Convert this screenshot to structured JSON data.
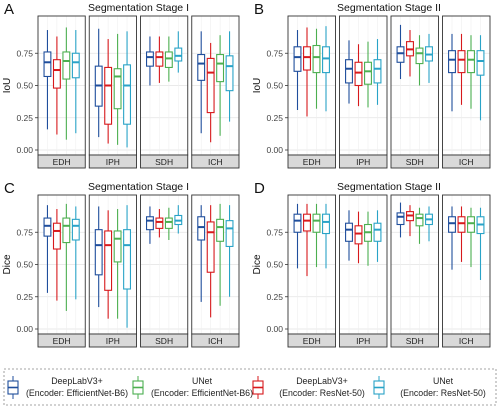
{
  "figure": {
    "colors": {
      "DeepLabV3+ (EfficientNet-B6)": "#1f4e9c",
      "UNet (EfficientNet-B6)": "#4caf50",
      "DeepLabV3+ (ResNet-50)": "#d7191c",
      "UNet (ResNet-50)": "#29a3c7"
    },
    "legend": [
      {
        "line1": "DeepLabV3+",
        "line2": "(Encoder: EfficientNet-B6)",
        "color": "#1f4e9c"
      },
      {
        "line1": "UNet",
        "line2": "(Encoder: EfficientNet-B6)",
        "color": "#4caf50"
      },
      {
        "line1": "DeepLabV3+",
        "line2": "(Encoder: ResNet-50)",
        "color": "#d7191c"
      },
      {
        "line1": "UNet",
        "line2": "(Encoder: ResNet-50)",
        "color": "#29a3c7"
      }
    ]
  },
  "chart_data": [
    {
      "panel": "A",
      "type": "boxplot",
      "title": "Segmentation Stage I",
      "ylabel": "IoU",
      "ylim": [
        0,
        1
      ],
      "yticks": [
        0.0,
        0.25,
        0.5,
        0.75
      ],
      "categories": [
        "EDH",
        "IPH",
        "SDH",
        "ICH"
      ],
      "series": [
        {
          "name": "DeepLabV3+ (EfficientNet-B6)",
          "stats": [
            [
              0.16,
              0.57,
              0.68,
              0.76,
              0.93
            ],
            [
              0.1,
              0.34,
              0.5,
              0.65,
              0.94
            ],
            [
              0.5,
              0.65,
              0.72,
              0.76,
              0.88
            ],
            [
              0.13,
              0.54,
              0.67,
              0.74,
              0.92
            ]
          ]
        },
        {
          "name": "DeepLabV3+ (ResNet-50)",
          "stats": [
            [
              0.12,
              0.48,
              0.62,
              0.7,
              0.88
            ],
            [
              0.05,
              0.2,
              0.5,
              0.64,
              0.86
            ],
            [
              0.52,
              0.65,
              0.72,
              0.76,
              0.88
            ],
            [
              0.06,
              0.29,
              0.6,
              0.71,
              0.83
            ]
          ]
        },
        {
          "name": "UNet (EfficientNet-B6)",
          "stats": [
            [
              0.08,
              0.55,
              0.69,
              0.76,
              0.95
            ],
            [
              0.04,
              0.32,
              0.57,
              0.63,
              0.9
            ],
            [
              0.53,
              0.64,
              0.71,
              0.76,
              0.88
            ],
            [
              0.11,
              0.53,
              0.67,
              0.74,
              0.89
            ]
          ]
        },
        {
          "name": "UNet (ResNet-50)",
          "stats": [
            [
              0.13,
              0.56,
              0.68,
              0.75,
              0.93
            ],
            [
              0.02,
              0.2,
              0.5,
              0.66,
              0.92
            ],
            [
              0.6,
              0.69,
              0.73,
              0.79,
              0.92
            ],
            [
              0.22,
              0.46,
              0.65,
              0.73,
              0.92
            ]
          ]
        }
      ]
    },
    {
      "panel": "B",
      "type": "boxplot",
      "title": "Segmentation Stage II",
      "ylabel": "IoU",
      "ylim": [
        0,
        1
      ],
      "yticks": [
        0.0,
        0.25,
        0.5,
        0.75
      ],
      "categories": [
        "EDH",
        "IPH",
        "SDH",
        "ICH"
      ],
      "series": [
        {
          "name": "DeepLabV3+ (EfficientNet-B6)",
          "stats": [
            [
              0.31,
              0.61,
              0.72,
              0.8,
              0.93
            ],
            [
              0.36,
              0.52,
              0.63,
              0.7,
              0.85
            ],
            [
              0.55,
              0.68,
              0.75,
              0.8,
              0.97
            ],
            [
              0.3,
              0.6,
              0.7,
              0.77,
              0.9
            ]
          ]
        },
        {
          "name": "DeepLabV3+ (ResNet-50)",
          "stats": [
            [
              0.26,
              0.62,
              0.72,
              0.8,
              0.95
            ],
            [
              0.34,
              0.5,
              0.6,
              0.68,
              0.82
            ],
            [
              0.57,
              0.73,
              0.78,
              0.84,
              0.93
            ],
            [
              0.35,
              0.6,
              0.7,
              0.77,
              0.9
            ]
          ]
        },
        {
          "name": "UNet (EfficientNet-B6)",
          "stats": [
            [
              0.32,
              0.6,
              0.72,
              0.81,
              0.94
            ],
            [
              0.33,
              0.51,
              0.61,
              0.68,
              0.84
            ],
            [
              0.5,
              0.67,
              0.75,
              0.79,
              0.89
            ],
            [
              0.32,
              0.6,
              0.7,
              0.77,
              0.89
            ]
          ]
        },
        {
          "name": "UNet (ResNet-50)",
          "stats": [
            [
              0.3,
              0.6,
              0.71,
              0.8,
              0.96
            ],
            [
              0.35,
              0.52,
              0.63,
              0.7,
              0.86
            ],
            [
              0.52,
              0.69,
              0.74,
              0.8,
              0.9
            ],
            [
              0.23,
              0.58,
              0.69,
              0.77,
              0.89
            ]
          ]
        }
      ]
    },
    {
      "panel": "C",
      "type": "boxplot",
      "title": "Segmentation Stage I",
      "ylabel": "Dice",
      "ylim": [
        0,
        1
      ],
      "yticks": [
        0.0,
        0.25,
        0.5,
        0.75
      ],
      "categories": [
        "EDH",
        "IPH",
        "SDH",
        "ICH"
      ],
      "series": [
        {
          "name": "DeepLabV3+ (EfficientNet-B6)",
          "stats": [
            [
              0.28,
              0.72,
              0.8,
              0.86,
              0.96
            ],
            [
              0.17,
              0.42,
              0.65,
              0.77,
              0.95
            ],
            [
              0.66,
              0.77,
              0.84,
              0.87,
              0.95
            ],
            [
              0.21,
              0.69,
              0.79,
              0.87,
              0.96
            ]
          ]
        },
        {
          "name": "DeepLabV3+ (ResNet-50)",
          "stats": [
            [
              0.22,
              0.62,
              0.76,
              0.82,
              0.93
            ],
            [
              0.08,
              0.3,
              0.65,
              0.76,
              0.92
            ],
            [
              0.71,
              0.78,
              0.83,
              0.86,
              0.93
            ],
            [
              0.09,
              0.44,
              0.75,
              0.83,
              0.96
            ]
          ]
        },
        {
          "name": "UNet (EfficientNet-B6)",
          "stats": [
            [
              0.14,
              0.67,
              0.8,
              0.86,
              0.97
            ],
            [
              0.08,
              0.52,
              0.7,
              0.76,
              0.93
            ],
            [
              0.69,
              0.78,
              0.83,
              0.86,
              0.94
            ],
            [
              0.18,
              0.68,
              0.79,
              0.85,
              0.97
            ]
          ]
        },
        {
          "name": "UNet (ResNet-50)",
          "stats": [
            [
              0.23,
              0.69,
              0.8,
              0.85,
              0.95
            ],
            [
              0.01,
              0.31,
              0.65,
              0.77,
              0.96
            ],
            [
              0.74,
              0.81,
              0.84,
              0.88,
              0.96
            ],
            [
              0.25,
              0.64,
              0.78,
              0.84,
              0.96
            ]
          ]
        }
      ]
    },
    {
      "panel": "D",
      "type": "boxplot",
      "title": "Segmentation Stage II",
      "ylabel": "Dice",
      "ylim": [
        0,
        1
      ],
      "yticks": [
        0.0,
        0.25,
        0.5,
        0.75
      ],
      "categories": [
        "EDH",
        "IPH",
        "SDH",
        "ICH"
      ],
      "series": [
        {
          "name": "DeepLabV3+ (EfficientNet-B6)",
          "stats": [
            [
              0.47,
              0.75,
              0.84,
              0.89,
              0.97
            ],
            [
              0.53,
              0.68,
              0.77,
              0.82,
              0.92
            ],
            [
              0.71,
              0.81,
              0.87,
              0.9,
              0.98
            ],
            [
              0.46,
              0.75,
              0.82,
              0.87,
              0.95
            ]
          ]
        },
        {
          "name": "DeepLabV3+ (ResNet-50)",
          "stats": [
            [
              0.41,
              0.76,
              0.84,
              0.89,
              0.97
            ],
            [
              0.51,
              0.66,
              0.74,
              0.8,
              0.91
            ],
            [
              0.72,
              0.84,
              0.88,
              0.91,
              0.96
            ],
            [
              0.52,
              0.75,
              0.82,
              0.87,
              0.95
            ]
          ]
        },
        {
          "name": "UNet (EfficientNet-B6)",
          "stats": [
            [
              0.48,
              0.75,
              0.84,
              0.89,
              0.97
            ],
            [
              0.49,
              0.68,
              0.75,
              0.81,
              0.91
            ],
            [
              0.66,
              0.8,
              0.86,
              0.89,
              0.94
            ],
            [
              0.48,
              0.75,
              0.82,
              0.87,
              0.94
            ]
          ]
        },
        {
          "name": "UNet (ResNet-50)",
          "stats": [
            [
              0.47,
              0.74,
              0.83,
              0.89,
              0.97
            ],
            [
              0.52,
              0.68,
              0.77,
              0.82,
              0.92
            ],
            [
              0.68,
              0.81,
              0.85,
              0.89,
              0.95
            ],
            [
              0.38,
              0.74,
              0.81,
              0.87,
              0.94
            ]
          ]
        }
      ]
    }
  ]
}
